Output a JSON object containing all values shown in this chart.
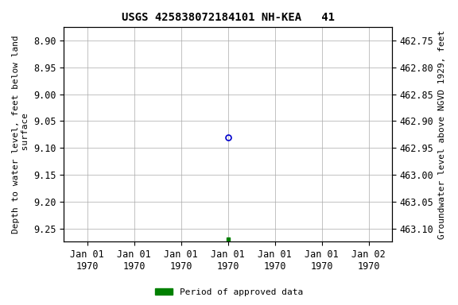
{
  "title": "USGS 425838072184101 NH-KEA   41",
  "ylabel_left": "Depth to water level, feet below land\n surface",
  "ylabel_right": "Groundwater level above NGVD 1929, feet",
  "ylim_left": [
    8.875,
    9.275
  ],
  "ylim_right": [
    462.725,
    463.125
  ],
  "y_ticks_left": [
    8.9,
    8.95,
    9.0,
    9.05,
    9.1,
    9.15,
    9.2,
    9.25
  ],
  "y_ticks_right": [
    463.1,
    463.05,
    463.0,
    462.95,
    462.9,
    462.85,
    462.8,
    462.75
  ],
  "point_open_x": 3,
  "point_open_y": 9.08,
  "point_filled_x": 3,
  "point_filled_y": 9.27,
  "open_marker_color": "#0000cc",
  "filled_marker_color": "#008000",
  "legend_label": "Period of approved data",
  "legend_color": "#008000",
  "background_color": "#ffffff",
  "grid_color": "#aaaaaa",
  "x_ticks": [
    0,
    1,
    2,
    3,
    4,
    5,
    6
  ],
  "x_labels": [
    "Jan 01\n1970",
    "Jan 01\n1970",
    "Jan 01\n1970",
    "Jan 01\n1970",
    "Jan 01\n1970",
    "Jan 01\n1970",
    "Jan 02\n1970"
  ],
  "xlim": [
    -0.5,
    6.5
  ],
  "title_fontsize": 10,
  "label_fontsize": 8,
  "tick_fontsize": 8.5
}
